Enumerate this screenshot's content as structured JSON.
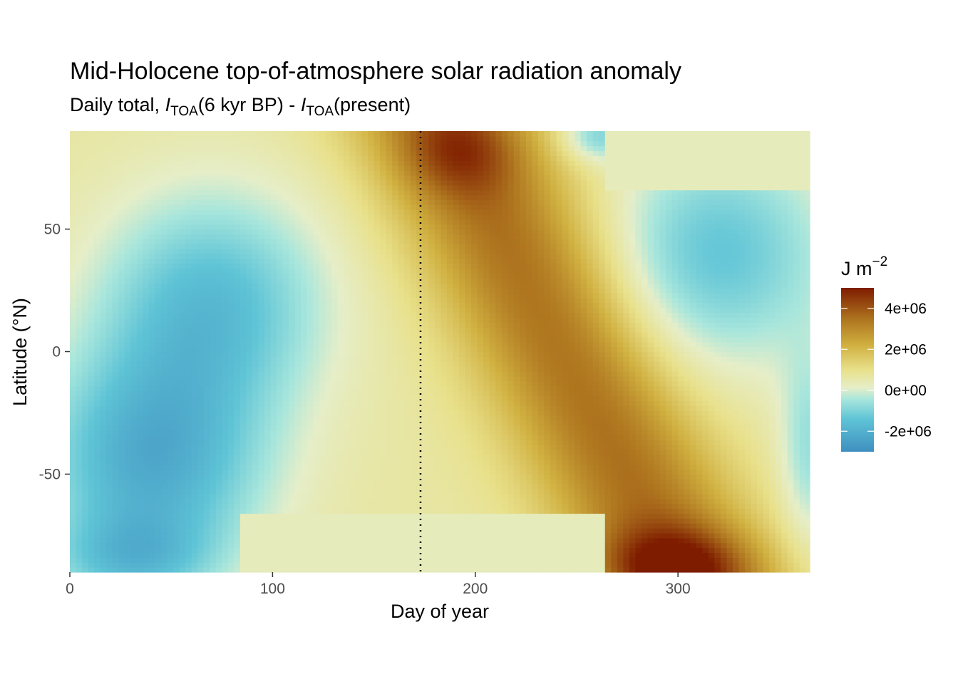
{
  "chart_data": {
    "type": "heatmap",
    "title": "Mid-Holocene top-of-atmosphere solar radiation anomaly",
    "subtitle": {
      "prefix": "Daily total, ",
      "var1": "I",
      "sub1": "TOA",
      "mid": "(6 kyr BP) - ",
      "var2": "I",
      "sub2": "TOA",
      "suffix": "(present)"
    },
    "xlabel": "Day of year",
    "ylabel": "Latitude (°N)",
    "xlim": [
      0,
      365
    ],
    "ylim": [
      -90,
      90
    ],
    "x_ticks": [
      0,
      100,
      200,
      300
    ],
    "x_tick_labels": [
      "0",
      "100",
      "200",
      "300"
    ],
    "y_ticks": [
      -50,
      0,
      50
    ],
    "y_tick_labels": [
      "-50",
      "0",
      "50"
    ],
    "reference_line": {
      "x": 173,
      "style": "dotted",
      "color": "#000000"
    },
    "grid_resolution": {
      "day_step": 3,
      "lat_step": 2
    },
    "value_field": {
      "description_units": "J m^-2",
      "baseline": 650000,
      "regions": [
        {
          "kind": "band",
          "day_at_south_pole": 300,
          "day_at_north_pole": 188,
          "half_width_days": 48,
          "amplitude": 2900000
        },
        {
          "kind": "blob",
          "day": 192,
          "lat": 82,
          "day_radius": 28,
          "lat_radius": 18,
          "amplitude": 1300000
        },
        {
          "kind": "blob",
          "day": 298,
          "lat": -88,
          "day_radius": 38,
          "lat_radius": 16,
          "amplitude": 2400000
        },
        {
          "kind": "blob",
          "day": 40,
          "lat": -45,
          "day_radius": 55,
          "lat_radius": 45,
          "amplitude": -2700000
        },
        {
          "kind": "blob",
          "day": 70,
          "lat": 20,
          "day_radius": 55,
          "lat_radius": 45,
          "amplitude": -2200000
        },
        {
          "kind": "blob",
          "day": 30,
          "lat": -85,
          "day_radius": 40,
          "lat_radius": 18,
          "amplitude": -1500000
        },
        {
          "kind": "blob",
          "day": 320,
          "lat": 40,
          "day_radius": 55,
          "lat_radius": 45,
          "amplitude": -2000000
        },
        {
          "kind": "blob",
          "day": 260,
          "lat": 88,
          "day_radius": 18,
          "lat_radius": 10,
          "amplitude": -1600000
        },
        {
          "kind": "blob",
          "day": 365,
          "lat": -40,
          "day_radius": 15,
          "lat_radius": 40,
          "amplitude": -1300000
        }
      ],
      "polar_night_south": {
        "start_day": 85,
        "end_day": 265,
        "below_lat": -66,
        "value": 300000
      },
      "polar_night_north": {
        "start_day": 265,
        "end_day": 365,
        "above_lat": 66,
        "value": 300000
      }
    },
    "colorbar": {
      "title_base": "J m",
      "title_exponent": "−2",
      "range": [
        -3000000,
        5000000
      ],
      "breaks": [
        -2000000,
        0,
        2000000,
        4000000
      ],
      "labels": [
        "-2e+06",
        "0e+00",
        "2e+06",
        "4e+06"
      ],
      "colors": [
        "#3f8fc0",
        "#5fc4d6",
        "#a8e6dc",
        "#e6eec8",
        "#e8e08a",
        "#d0b040",
        "#b07820",
        "#7e1c00"
      ],
      "stops": [
        0.0,
        0.2,
        0.32,
        0.39,
        0.5,
        0.65,
        0.8,
        1.0
      ]
    }
  }
}
